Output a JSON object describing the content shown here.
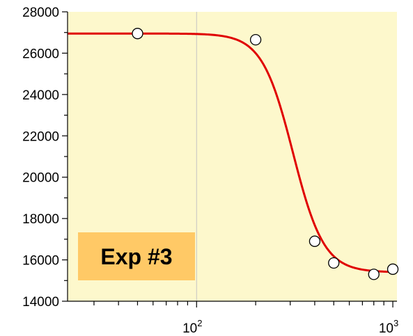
{
  "chart_data": {
    "type": "scatter",
    "title": "",
    "xlabel": "",
    "ylabel": "",
    "x_scale": "log",
    "xlim": [
      22,
      1050
    ],
    "ylim": [
      14000,
      28000
    ],
    "y_ticks": [
      14000,
      16000,
      18000,
      20000,
      22000,
      24000,
      26000,
      28000
    ],
    "y_tick_labels": [
      "14000",
      "16000",
      "18000",
      "20000",
      "22000",
      "24000",
      "26000",
      "28000"
    ],
    "x_ticks": [
      {
        "value": 100,
        "base": "10",
        "exp": "2"
      },
      {
        "value": 1000,
        "base": "10",
        "exp": "3"
      }
    ],
    "grid": "vertical line at 10^2",
    "background_color": "#fdf8cc",
    "point_fill": "#ffffff",
    "curve_color": "#e00000",
    "series": [
      {
        "values": [
          {
            "x": 50,
            "y": 26950
          },
          {
            "x": 200,
            "y": 26650
          },
          {
            "x": 400,
            "y": 16900
          },
          {
            "x": 500,
            "y": 15850
          },
          {
            "x": 800,
            "y": 15300
          },
          {
            "x": 1000,
            "y": 15550
          }
        ]
      }
    ],
    "fit_curve": {
      "type": "sigmoid",
      "top": 26950,
      "bottom": 15400,
      "x_mid": 310,
      "hill": 5.5
    },
    "annotation": {
      "text": "Exp #3",
      "color": "#ffc966"
    }
  }
}
